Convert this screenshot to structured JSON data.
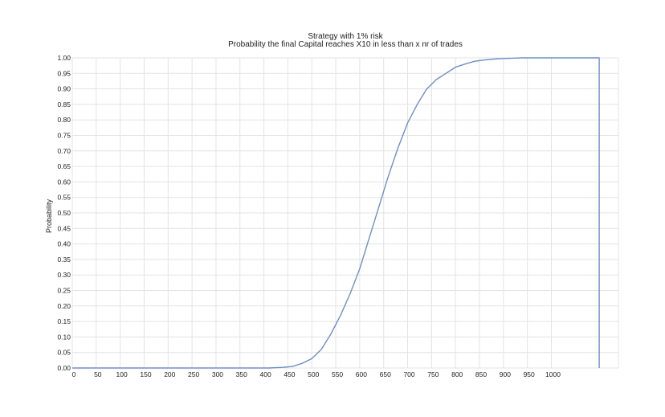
{
  "chart_data": {
    "type": "line",
    "title": "Strategy with 1% risk",
    "subtitle": "Probability the final Capital reaches X10 in less than x nr of trades",
    "xlabel": "",
    "ylabel": "Probability",
    "xlim": [
      0,
      1140
    ],
    "ylim": [
      0,
      1.0
    ],
    "grid": true,
    "line_color": "#6f8fc5",
    "x_ticks": [
      "0",
      "50",
      "100",
      "150",
      "200",
      "250",
      "300",
      "350",
      "400",
      "450",
      "500",
      "550",
      "600",
      "650",
      "700",
      "750",
      "800",
      "850",
      "900",
      "950",
      "1000"
    ],
    "y_ticks": [
      "0.00",
      "0.05",
      "0.10",
      "0.15",
      "0.20",
      "0.25",
      "0.30",
      "0.35",
      "0.40",
      "0.45",
      "0.50",
      "0.55",
      "0.60",
      "0.65",
      "0.70",
      "0.75",
      "0.80",
      "0.85",
      "0.90",
      "0.95",
      "1.00"
    ],
    "series": [
      {
        "x": [
          0,
          410,
          440,
          460,
          480,
          500,
          520,
          540,
          560,
          580,
          600,
          620,
          640,
          660,
          680,
          700,
          720,
          740,
          760,
          780,
          800,
          820,
          840,
          860,
          880,
          900,
          920,
          940,
          960,
          980,
          1000,
          1050,
          1100,
          1100
        ],
        "y": [
          0,
          0,
          0.002,
          0.005,
          0.015,
          0.03,
          0.06,
          0.11,
          0.17,
          0.24,
          0.32,
          0.42,
          0.52,
          0.62,
          0.71,
          0.79,
          0.85,
          0.9,
          0.93,
          0.95,
          0.97,
          0.98,
          0.989,
          0.993,
          0.996,
          0.998,
          0.999,
          1.0,
          1.0,
          1.0,
          1.0,
          1.0,
          1.0,
          0
        ]
      }
    ]
  }
}
